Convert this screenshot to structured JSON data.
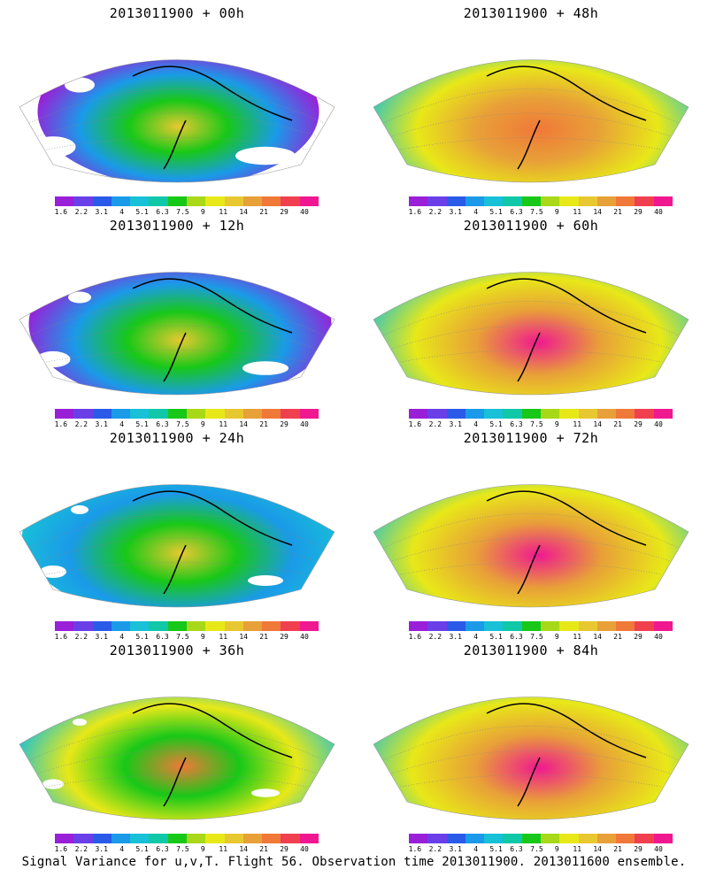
{
  "panels": [
    {
      "title": "2013011900 + 00h",
      "intensity": 0.15
    },
    {
      "title": "2013011900 + 48h",
      "intensity": 0.75
    },
    {
      "title": "2013011900 + 12h",
      "intensity": 0.35
    },
    {
      "title": "2013011900 + 60h",
      "intensity": 0.82
    },
    {
      "title": "2013011900 + 24h",
      "intensity": 0.5
    },
    {
      "title": "2013011900 + 72h",
      "intensity": 0.9
    },
    {
      "title": "2013011900 + 36h",
      "intensity": 0.6
    },
    {
      "title": "2013011900 + 84h",
      "intensity": 0.95
    }
  ],
  "colorbar": {
    "colors": [
      "#9a1fd8",
      "#6a3fe8",
      "#2a5ae8",
      "#1a9ae8",
      "#18c0d8",
      "#10c8a8",
      "#18c818",
      "#a8d818",
      "#e8e818",
      "#e8c830",
      "#e8a038",
      "#f07838",
      "#f04050",
      "#f01890"
    ],
    "ticks": [
      "1.6",
      "2.2",
      "3.1",
      "4",
      "5.1",
      "6.3",
      "7.5",
      "9",
      "11",
      "14",
      "21",
      "29",
      "40"
    ]
  },
  "caption": "Signal Variance for u,v,T. Flight 56. Observation time 2013011900. 2013011600 ensemble."
}
